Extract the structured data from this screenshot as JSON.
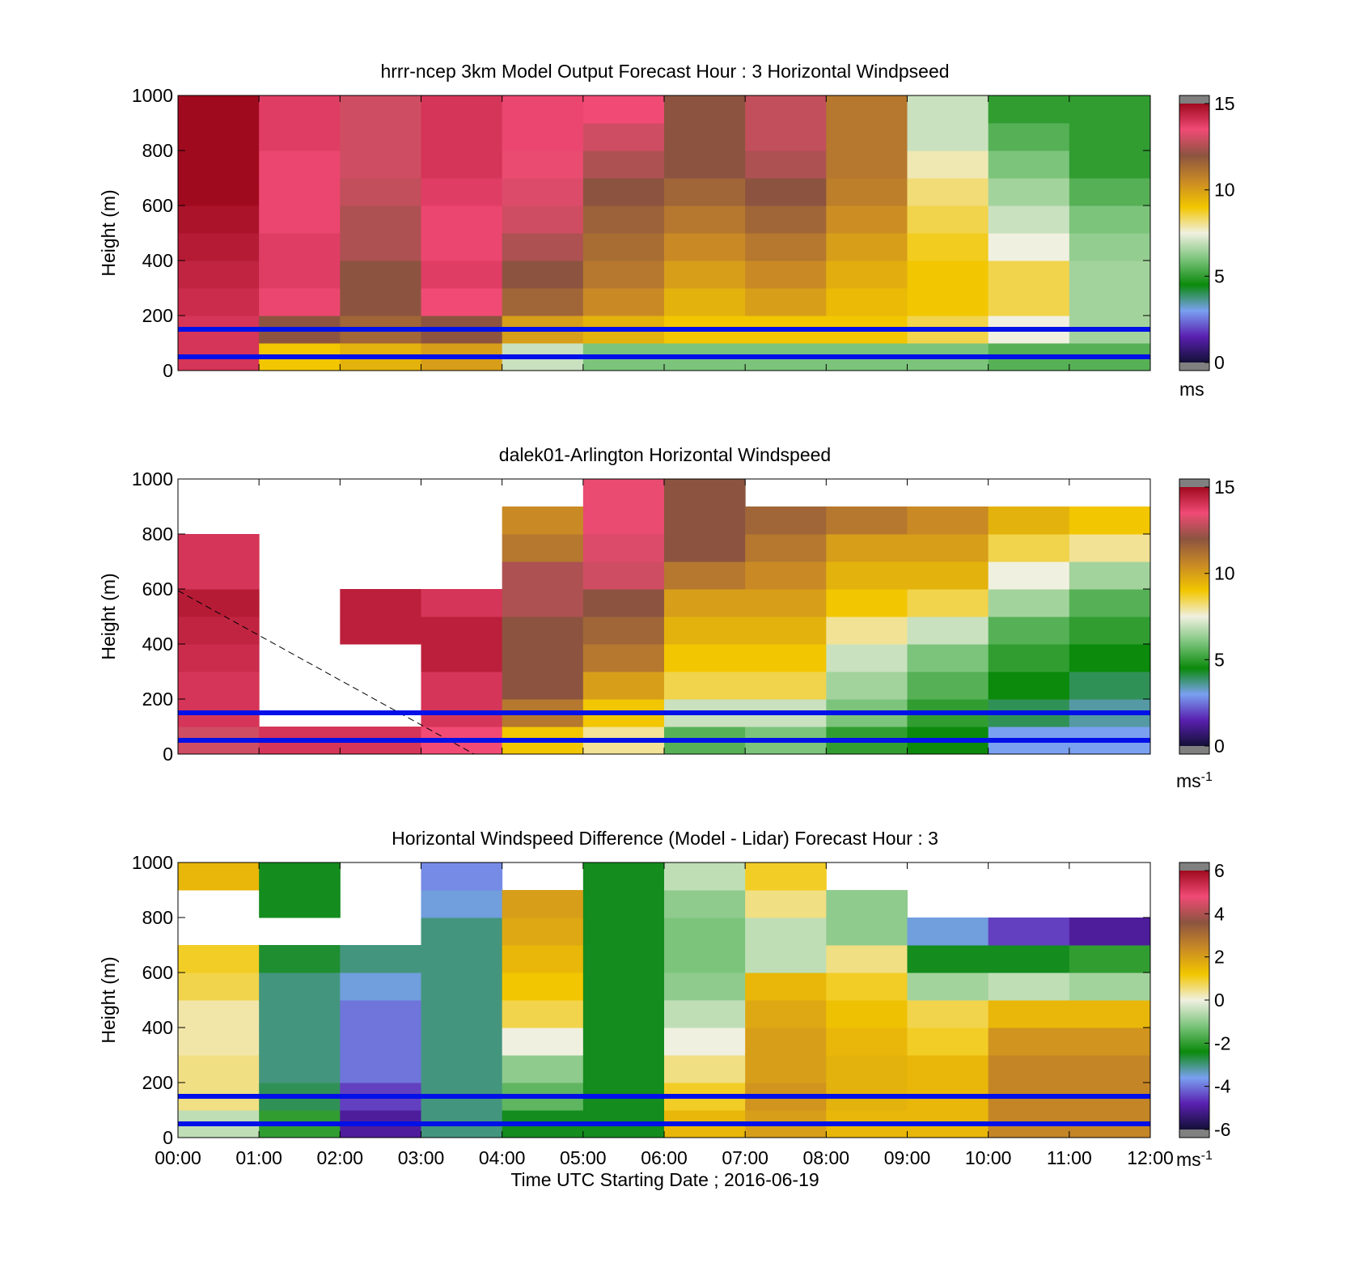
{
  "chart_data": [
    {
      "type": "heatmap",
      "title": "hrrr-ncep 3km Model Output   Forecast Hour : 3 Horizontal Windpseed",
      "xlabel": "",
      "ylabel": "Height (m)",
      "ylim": [
        0,
        1000
      ],
      "yticks": [
        0,
        200,
        400,
        600,
        800,
        1000
      ],
      "xlim": [
        0,
        12
      ],
      "colorbar": {
        "ticks": [
          0,
          5,
          10,
          15
        ],
        "range": [
          0,
          15
        ],
        "unit": "ms",
        "unit_sup": ""
      },
      "overlay_lines_height_m": [
        150,
        50
      ],
      "height_bins_m": [
        0,
        100,
        200,
        300,
        400,
        500,
        600,
        700,
        800,
        900
      ],
      "columns": [
        {
          "hour": 0,
          "values": [
            14,
            14,
            14.2,
            14.4,
            14.6,
            14.8,
            15,
            15,
            15,
            15
          ]
        },
        {
          "hour": 1,
          "values": [
            9,
            12,
            13.6,
            13.8,
            13.8,
            13.6,
            13.6,
            13.6,
            13.8,
            13.8
          ]
        },
        {
          "hour": 2,
          "values": [
            9.5,
            11.5,
            12,
            12,
            12.5,
            12.5,
            12.8,
            13,
            13,
            13
          ]
        },
        {
          "hour": 3,
          "values": [
            10,
            12,
            13.5,
            13.8,
            13.6,
            13.6,
            13.8,
            14,
            14,
            14
          ]
        },
        {
          "hour": 4,
          "values": [
            7,
            10,
            11.5,
            12,
            12.5,
            13,
            13.2,
            13.4,
            13.6,
            13.6
          ]
        },
        {
          "hour": 5,
          "values": [
            6,
            9.5,
            10.5,
            11,
            11.3,
            11.6,
            12,
            12.5,
            13,
            13.5
          ]
        },
        {
          "hour": 6,
          "values": [
            6,
            9,
            9.5,
            10,
            10.5,
            11,
            11.5,
            12,
            12,
            12
          ]
        },
        {
          "hour": 7,
          "values": [
            6,
            9,
            10,
            10.5,
            11,
            11.5,
            12,
            12.5,
            12.8,
            12.8
          ]
        },
        {
          "hour": 8,
          "values": [
            6,
            9,
            9.3,
            9.6,
            10,
            10.4,
            10.8,
            11,
            11,
            11
          ]
        },
        {
          "hour": 9,
          "values": [
            6,
            8.5,
            9,
            9,
            8.8,
            8.5,
            8.2,
            7.8,
            7,
            7
          ]
        },
        {
          "hour": 10,
          "values": [
            5.5,
            7.5,
            8.5,
            8.5,
            7.5,
            7,
            6.5,
            6,
            5.5,
            5
          ]
        },
        {
          "hour": 11,
          "values": [
            5.5,
            6.5,
            6.5,
            6.5,
            6.3,
            6,
            5.5,
            5,
            5,
            5
          ]
        }
      ]
    },
    {
      "type": "heatmap",
      "title": "dalek01-Arlington  Horizontal Windspeed",
      "xlabel": "",
      "ylabel": "Height (m)",
      "ylim": [
        0,
        1000
      ],
      "yticks": [
        0,
        200,
        400,
        600,
        800,
        1000
      ],
      "xlim": [
        0,
        12
      ],
      "colorbar": {
        "ticks": [
          0,
          5,
          10,
          15
        ],
        "range": [
          0,
          15
        ],
        "unit": "ms",
        "unit_sup": "-1"
      },
      "overlay_lines_height_m": [
        150,
        50
      ],
      "height_bins_m": [
        0,
        100,
        200,
        300,
        400,
        500,
        600,
        700,
        800,
        900
      ],
      "columns": [
        {
          "hour": 0,
          "values": [
            13,
            14,
            14,
            14.2,
            14.4,
            14.6,
            14,
            14,
            null,
            null
          ]
        },
        {
          "hour": 1,
          "values": [
            14,
            null,
            null,
            null,
            null,
            null,
            null,
            null,
            null,
            null
          ]
        },
        {
          "hour": 2,
          "values": [
            14,
            null,
            null,
            null,
            14.5,
            14.5,
            null,
            null,
            null,
            null
          ]
        },
        {
          "hour": 3,
          "values": [
            13.5,
            14,
            14,
            14.5,
            14.5,
            14,
            null,
            null,
            null,
            null
          ]
        },
        {
          "hour": 4,
          "values": [
            9,
            11,
            12,
            12,
            12,
            12.5,
            12.5,
            11,
            10.5,
            null
          ]
        },
        {
          "hour": 5,
          "values": [
            8,
            9,
            10,
            11,
            11.5,
            12,
            13,
            13.2,
            13.4,
            13.4
          ]
        },
        {
          "hour": 6,
          "values": [
            5.5,
            7,
            8.5,
            9,
            9.5,
            10,
            11,
            12,
            12,
            12
          ]
        },
        {
          "hour": 7,
          "values": [
            6,
            7,
            8.5,
            9,
            9.5,
            10,
            10.5,
            11,
            11.5,
            null
          ]
        },
        {
          "hour": 8,
          "values": [
            5,
            6,
            6.5,
            7,
            8,
            9,
            9.5,
            10,
            11,
            null
          ]
        },
        {
          "hour": 9,
          "values": [
            4.5,
            5,
            5.5,
            6,
            7,
            8.5,
            9.5,
            10,
            10.5,
            null
          ]
        },
        {
          "hour": 10,
          "values": [
            3,
            4,
            4.5,
            5,
            5.5,
            6.5,
            7.5,
            8.5,
            9.5,
            null
          ]
        },
        {
          "hour": 11,
          "values": [
            3,
            3.5,
            4,
            4.5,
            5,
            5.5,
            6.5,
            8,
            9,
            null
          ]
        }
      ]
    },
    {
      "type": "heatmap",
      "title": "Horizontal Windspeed Difference (Model - Lidar) Forecast Hour : 3",
      "xlabel": "Time UTC  Starting Date ; 2016-06-19",
      "ylabel": "Height (m)",
      "ylim": [
        0,
        1000
      ],
      "yticks": [
        0,
        200,
        400,
        600,
        800,
        1000
      ],
      "xlim": [
        0,
        12
      ],
      "xtick_labels": [
        "00:00",
        "01:00",
        "02:00",
        "03:00",
        "04:00",
        "05:00",
        "06:00",
        "07:00",
        "08:00",
        "09:00",
        "10:00",
        "11:00",
        "12:00"
      ],
      "colorbar": {
        "ticks": [
          -6,
          -4,
          -2,
          0,
          2,
          4,
          6
        ],
        "range": [
          -6,
          6
        ],
        "unit": "ms",
        "unit_sup": "-1"
      },
      "overlay_lines_height_m": [
        150,
        50
      ],
      "height_bins_m": [
        0,
        100,
        200,
        300,
        400,
        500,
        600,
        700,
        800,
        900
      ],
      "columns": [
        {
          "hour": 0,
          "values": [
            -0.5,
            0.5,
            0.5,
            0.3,
            0.3,
            0.8,
            1,
            null,
            null,
            1.5
          ]
        },
        {
          "hour": 1,
          "values": [
            -2,
            -2.8,
            -3,
            -3,
            -3,
            -3,
            -2.6,
            null,
            -2.5,
            -2.5
          ]
        },
        {
          "hour": 2,
          "values": [
            -5,
            -4.5,
            -4,
            -4,
            -4,
            -3.5,
            -3,
            null,
            null,
            null
          ]
        },
        {
          "hour": 3,
          "values": [
            -3,
            -3,
            -3,
            -3,
            -3,
            -3,
            -3,
            -3,
            -3.5,
            -3.8
          ]
        },
        {
          "hour": 4,
          "values": [
            -2.5,
            -1.5,
            -1,
            0,
            0.8,
            1.2,
            1.5,
            1.8,
            2,
            null
          ]
        },
        {
          "hour": 5,
          "values": [
            -2.5,
            -2.5,
            -2.5,
            -2.5,
            -2.5,
            -2.5,
            -2.5,
            -2.5,
            -2.5,
            -2.5
          ]
        },
        {
          "hour": 6,
          "values": [
            1.5,
            1,
            0.5,
            0,
            -0.5,
            -1,
            -1.2,
            -1.2,
            -1,
            -0.5
          ]
        },
        {
          "hour": 7,
          "values": [
            2,
            2.2,
            2,
            2,
            1.8,
            1.5,
            -0.5,
            -0.5,
            0.5,
            1
          ]
        },
        {
          "hour": 8,
          "values": [
            1.5,
            1.6,
            1.6,
            1.5,
            1.3,
            1,
            0.5,
            -1,
            -1,
            null
          ]
        },
        {
          "hour": 9,
          "values": [
            1.5,
            1.5,
            1.5,
            1,
            0.8,
            -0.8,
            -2.5,
            -3.5,
            null,
            null
          ]
        },
        {
          "hour": 10,
          "values": [
            2.5,
            2.5,
            2.5,
            2.2,
            1.5,
            -0.5,
            -2.5,
            -4.5,
            null,
            null
          ]
        },
        {
          "hour": 11,
          "values": [
            2.5,
            2.5,
            2.5,
            2.2,
            1.5,
            -0.8,
            -2,
            -5,
            null,
            null
          ]
        }
      ]
    }
  ]
}
